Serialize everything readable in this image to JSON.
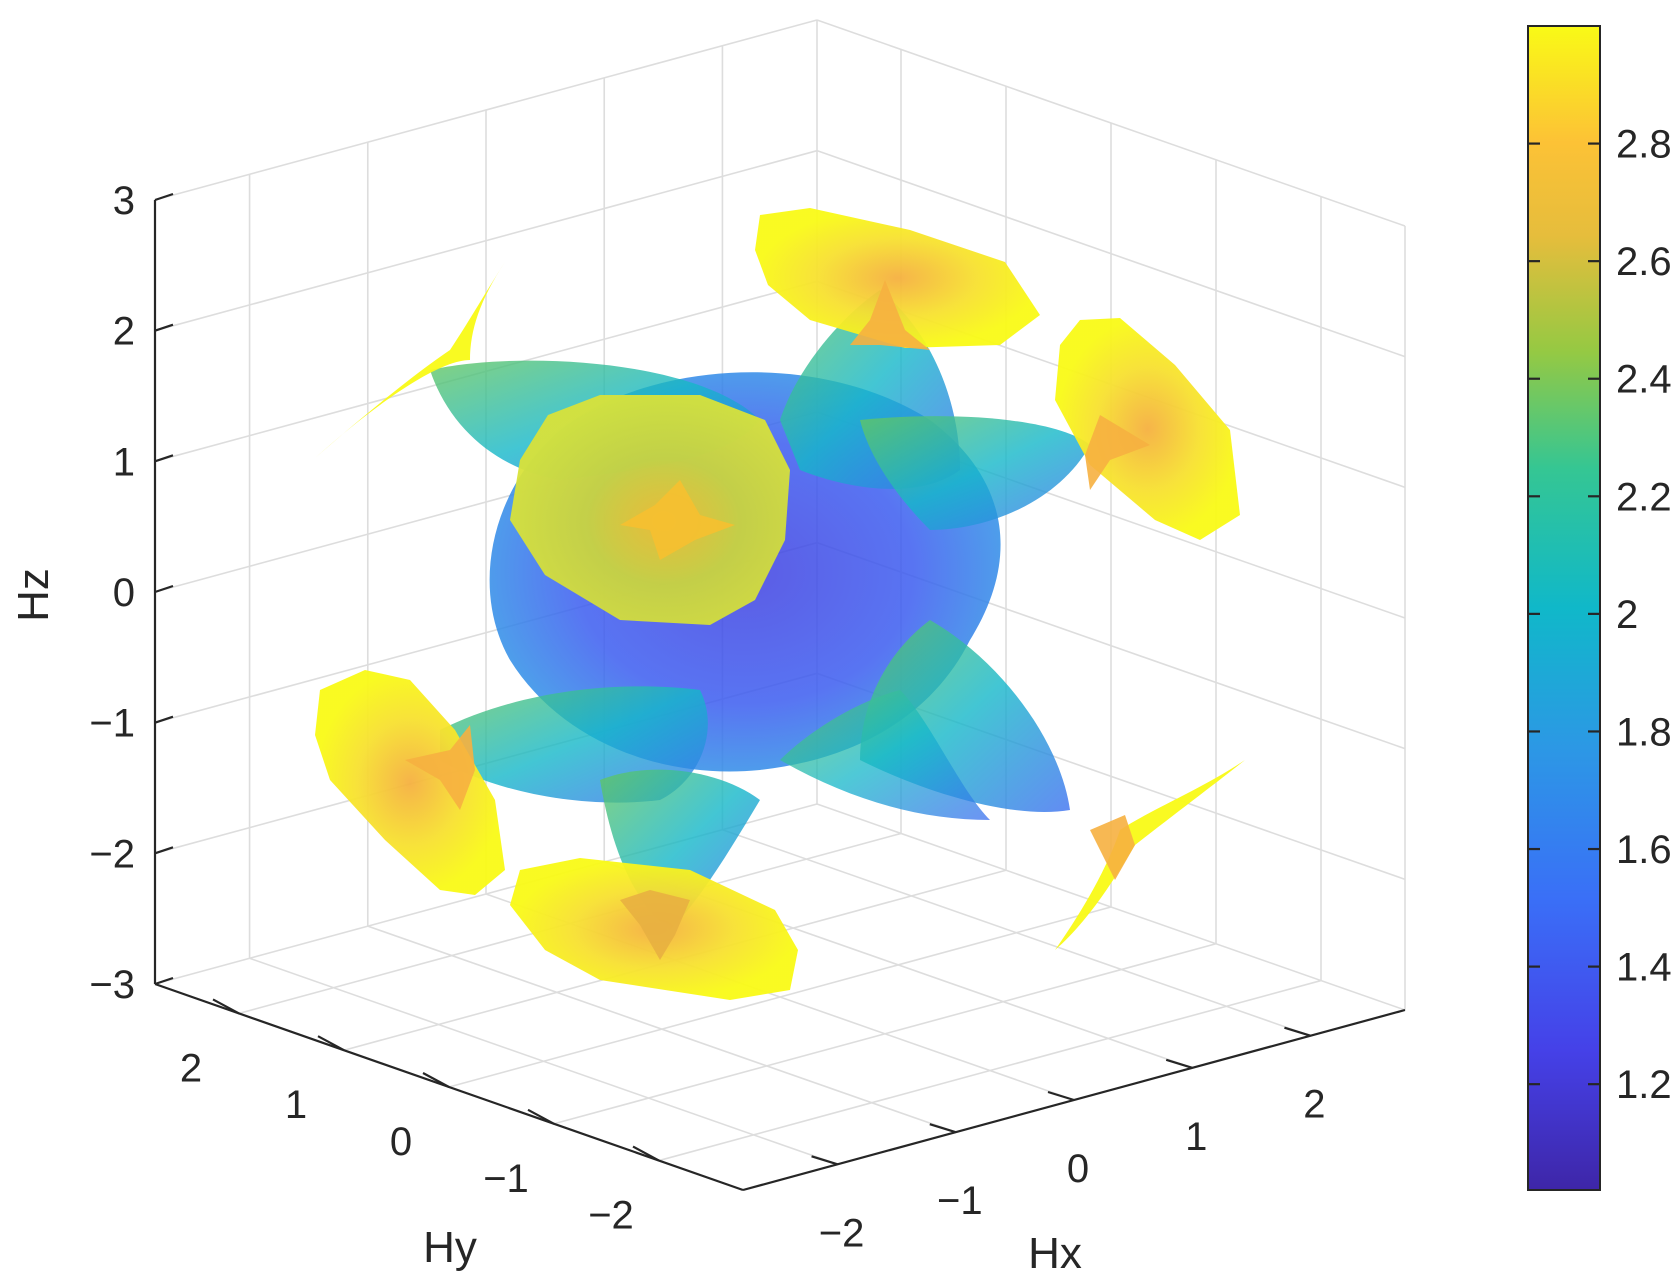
{
  "chart_data": {
    "type": "isosurface-3d",
    "title": "",
    "xlabel": "Hx",
    "ylabel": "Hy",
    "zlabel": "Hz",
    "xlim": [
      -2.8,
      2.8
    ],
    "ylim": [
      -2.8,
      2.8
    ],
    "zlim": [
      -3,
      3
    ],
    "x_ticks": [
      "−2",
      "−1",
      "0",
      "1",
      "2"
    ],
    "y_ticks": [
      "2",
      "1",
      "0",
      "−1",
      "−2"
    ],
    "z_ticks": [
      "3",
      "2",
      "1",
      "0",
      "−1",
      "−2",
      "−3"
    ],
    "grid": true,
    "colormap": "parula",
    "colorbar": {
      "range": [
        1.02,
        3.0
      ],
      "ticks": [
        "2.8",
        "2.6",
        "2.4",
        "2.2",
        "2",
        "1.8",
        "1.6",
        "1.4",
        "1.2"
      ],
      "placement": "right"
    },
    "colors": {
      "low": "#3e26a8",
      "blue": "#3b55ec",
      "cyan": "#14b7c9",
      "green": "#64c660",
      "orange": "#f5b83f",
      "yellow": "#f9fa16"
    }
  }
}
